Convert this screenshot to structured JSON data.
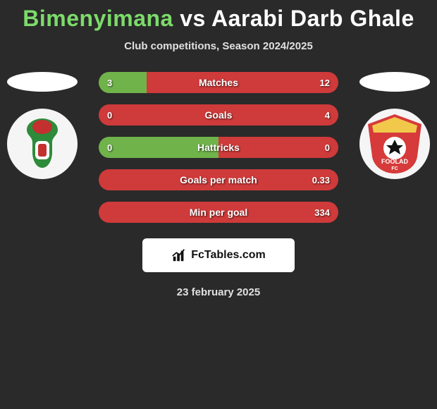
{
  "header": {
    "title_left": "Bimenyimana",
    "title_vs": "vs",
    "title_right": "Aarabi Darb Ghale",
    "subtitle": "Club competitions, Season 2024/2025"
  },
  "colors": {
    "left_bar": "#6fb34a",
    "right_bar": "#cf3a3a",
    "background": "#2a2a2a",
    "title_left": "#7cdb6a",
    "title_right": "#ffffff"
  },
  "stats": [
    {
      "label": "Matches",
      "left_val": "3",
      "right_val": "12",
      "left_pct": 20,
      "right_pct": 80
    },
    {
      "label": "Goals",
      "left_val": "0",
      "right_val": "4",
      "left_pct": 0,
      "right_pct": 100
    },
    {
      "label": "Hattricks",
      "left_val": "0",
      "right_val": "0",
      "left_pct": 50,
      "right_pct": 50
    },
    {
      "label": "Goals per match",
      "left_val": "",
      "right_val": "0.33",
      "left_pct": 0,
      "right_pct": 100
    },
    {
      "label": "Min per goal",
      "left_val": "",
      "right_val": "334",
      "left_pct": 0,
      "right_pct": 100
    }
  ],
  "brand": {
    "text": "FcTables.com"
  },
  "date": "23 february 2025",
  "crest_left": {
    "primary": "#2e8b3a",
    "accent": "#c43030"
  },
  "crest_right": {
    "primary": "#d63a3a",
    "accent": "#f2c84b",
    "ball": "#ffffff",
    "label": "FOOLAD",
    "sub": "FC"
  }
}
